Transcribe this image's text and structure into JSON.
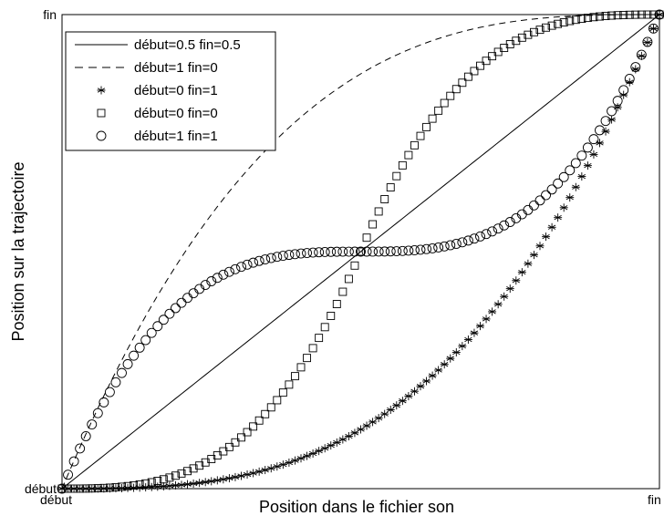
{
  "chart_data": {
    "type": "line",
    "xlabel": "Position dans le fichier son",
    "ylabel": "Position sur la trajectoire",
    "xlim": [
      0,
      1
    ],
    "ylim": [
      0,
      1
    ],
    "x_ticks": [
      {
        "value": 0,
        "label": "début"
      },
      {
        "value": 1,
        "label": "fin"
      }
    ],
    "y_ticks": [
      {
        "value": 0,
        "label": "début"
      },
      {
        "value": 1,
        "label": "fin"
      }
    ],
    "grid": false,
    "legend_position": "top-left",
    "sample_count": 101,
    "series": [
      {
        "name": "début=0.5 fin=0.5",
        "style": "solid-line",
        "curve": "linear",
        "x": [
          0,
          0.25,
          0.5,
          0.75,
          1
        ],
        "y": [
          0,
          0.25,
          0.5,
          0.75,
          1
        ]
      },
      {
        "name": "début=1  fin=0",
        "style": "dashed-line",
        "curve": "ease-out",
        "x": [
          0,
          0.25,
          0.5,
          0.75,
          1
        ],
        "y": [
          0,
          0.58,
          0.84,
          0.96,
          1
        ]
      },
      {
        "name": "début=0 fin=1",
        "style": "star-markers",
        "curve": "ease-in",
        "x": [
          0,
          0.25,
          0.5,
          0.75,
          1
        ],
        "y": [
          0,
          0.04,
          0.16,
          0.42,
          1
        ]
      },
      {
        "name": "début=0 fin=0",
        "style": "square-markers",
        "curve": "ease-in-out",
        "x": [
          0,
          0.25,
          0.5,
          0.75,
          1
        ],
        "y": [
          0,
          0.06,
          0.5,
          0.94,
          1
        ]
      },
      {
        "name": "début=1 fin=1",
        "style": "circle-markers",
        "curve": "ease-out-in",
        "x": [
          0,
          0.25,
          0.5,
          0.75,
          1
        ],
        "y": [
          0,
          0.44,
          0.5,
          0.56,
          1
        ]
      }
    ]
  }
}
